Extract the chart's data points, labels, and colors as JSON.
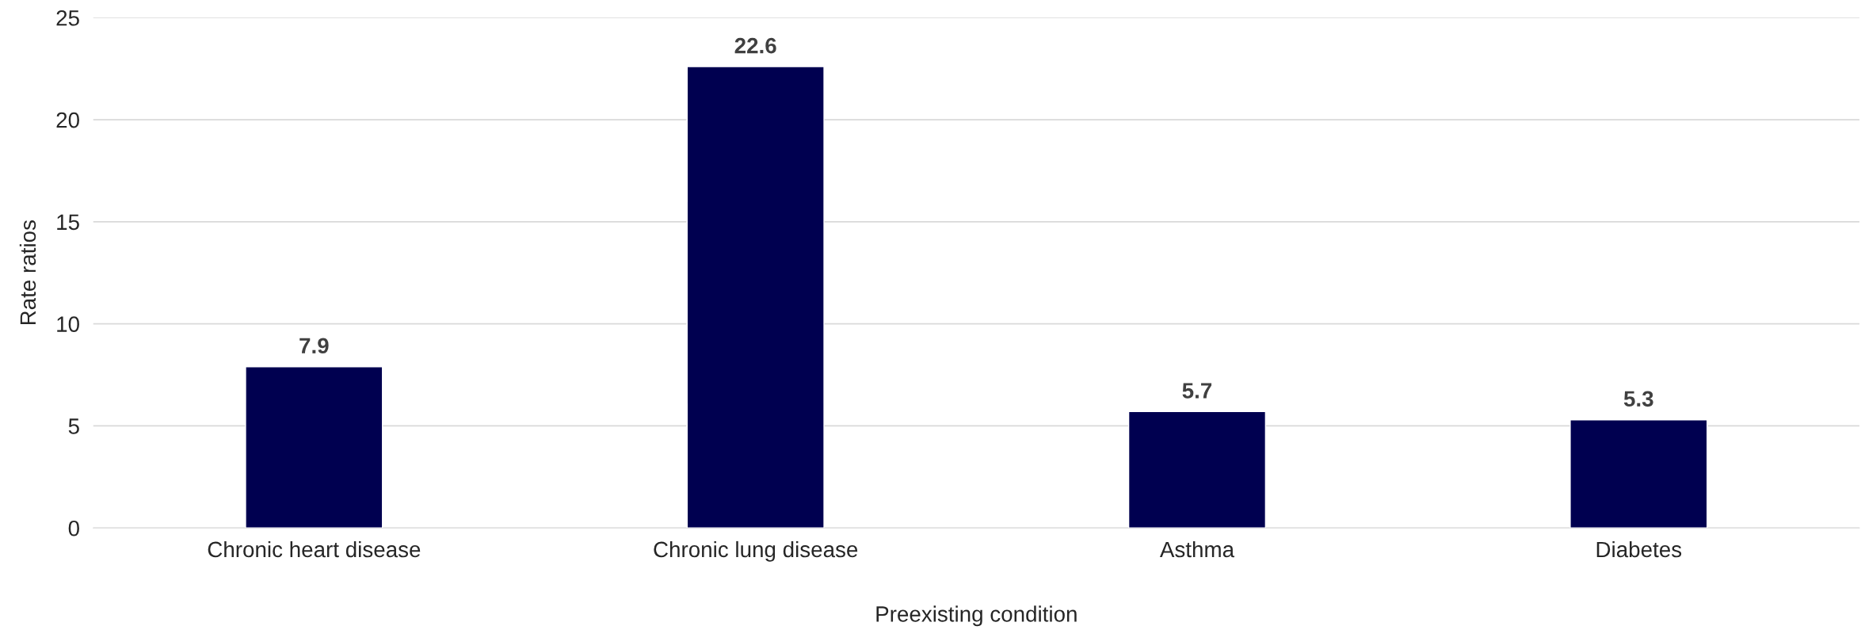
{
  "chart_data": {
    "type": "bar",
    "xlabel": "Preexisting condition",
    "ylabel": "Rate ratios",
    "categories": [
      "Chronic heart disease",
      "Chronic lung disease",
      "Asthma",
      "Diabetes"
    ],
    "values": [
      7.9,
      22.6,
      5.7,
      5.3
    ],
    "color": "#000050",
    "ylim": [
      0,
      25
    ],
    "yticks": [
      0,
      5,
      10,
      15,
      20,
      25
    ],
    "grid": "y",
    "data_labels": true
  }
}
